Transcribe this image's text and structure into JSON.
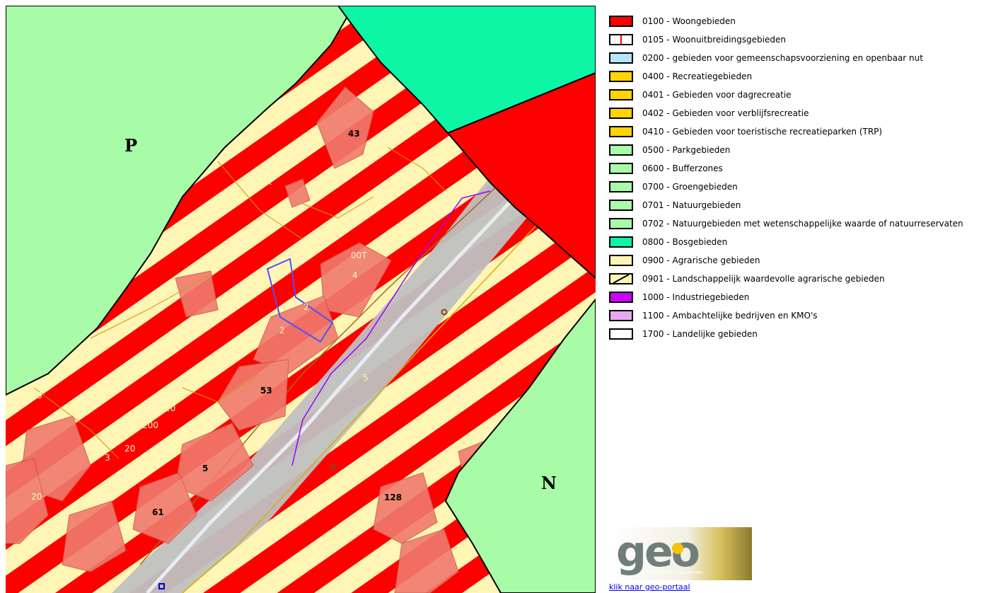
{
  "map": {
    "zone_labels": [
      "P",
      "N"
    ],
    "parcel_labels": [
      "43",
      "200K",
      "00T",
      "4",
      "2",
      "20",
      "2",
      "53",
      "5",
      "20",
      "200",
      "20",
      "3",
      "00H3",
      "20",
      "5",
      "61",
      "128"
    ],
    "colors": {
      "park": "#a8fca8",
      "forest": "#0cf6a6",
      "residential": "#ff0000",
      "agrarian": "#fff5b5",
      "rail": "#c0c0c0",
      "building": "#f07a6d"
    }
  },
  "legend": {
    "items": [
      {
        "label": "0100 - Woongebieden",
        "fill": "#ff0000",
        "pattern": "solid"
      },
      {
        "label": "0105 - Woonuitbreidingsgebieden",
        "fill": "#ffffff",
        "pattern": "red-line"
      },
      {
        "label": "0200 - gebieden voor gemeenschapsvoorziening en openbaar nut",
        "fill": "#b3e6fa",
        "pattern": "solid"
      },
      {
        "label": "0400 - Recreatiegebieden",
        "fill": "#ffd400",
        "pattern": "solid"
      },
      {
        "label": "0401 - Gebieden voor dagrecreatie",
        "fill": "#ffd400",
        "pattern": "solid"
      },
      {
        "label": "0402 - Gebieden voor verblijfsrecreatie",
        "fill": "#ffd400",
        "pattern": "solid"
      },
      {
        "label": "0410 - Gebieden voor toeristische recreatieparken (TRP)",
        "fill": "#ffd400",
        "pattern": "solid"
      },
      {
        "label": "0500 - Parkgebieden",
        "fill": "#a8fca8",
        "pattern": "solid"
      },
      {
        "label": "0600 - Bufferzones",
        "fill": "#a8fca8",
        "pattern": "solid"
      },
      {
        "label": "0700 - Groengebieden",
        "fill": "#a8fca8",
        "pattern": "solid"
      },
      {
        "label": "0701 - Natuurgebieden",
        "fill": "#a8fca8",
        "pattern": "solid"
      },
      {
        "label": "0702 - Natuurgebieden met wetenschappelijke waarde of natuurreservaten",
        "fill": "#a8fca8",
        "pattern": "solid"
      },
      {
        "label": "0800 - Bosgebieden",
        "fill": "#0cf6a6",
        "pattern": "solid"
      },
      {
        "label": "0900 - Agrarische gebieden",
        "fill": "#fff5b5",
        "pattern": "solid"
      },
      {
        "label": "0901 - Landschappelijk waardevolle agrarische gebieden",
        "fill": "#fff5b5",
        "pattern": "diagonal-line"
      },
      {
        "label": "1000 - Industriegebieden",
        "fill": "#cc00ff",
        "pattern": "solid"
      },
      {
        "label": "1100 - Ambachtelijke bedrijven en KMO's",
        "fill": "#e6a8ee",
        "pattern": "solid"
      },
      {
        "label": "1700 - Landelijke gebieden",
        "fill": "#ffffff",
        "pattern": "solid"
      }
    ]
  },
  "logo": {
    "word": "geo",
    "subtitle": "Geopunt Vlaanderen",
    "icon": "geopunt-logo"
  },
  "portal_link": {
    "label": "klik naar geo-portaal"
  }
}
